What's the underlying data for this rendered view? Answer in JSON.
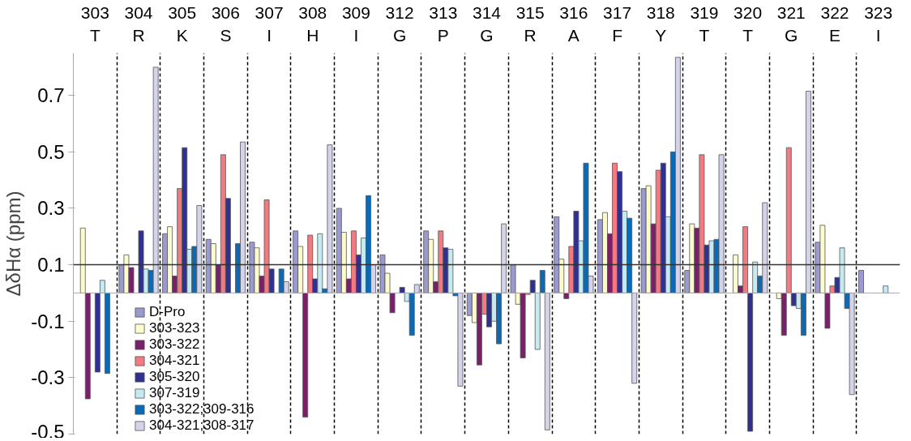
{
  "chart_data": {
    "type": "bar",
    "ylabel": "ΔδHα (ppm)",
    "categories": [
      "303\nT",
      "304\nR",
      "305\nK",
      "306\nS",
      "307\nI",
      "308\nH",
      "309\nI",
      "312\nG",
      "313\nP",
      "314\nG",
      "315\nR",
      "316\nA",
      "317\nF",
      "318\nY",
      "319\nT",
      "320\nT",
      "321\nG",
      "322\nE",
      "323\nI"
    ],
    "series": [
      {
        "name": "D-Pro",
        "color": "#9a9ad0",
        "values": [
          null,
          0.1,
          0.21,
          0.19,
          0.18,
          0.22,
          0.3,
          0.135,
          0.22,
          -0.08,
          0.1,
          0.27,
          0.26,
          0.37,
          0.08,
          null,
          null,
          0.18,
          0.08
        ]
      },
      {
        "name": "303-323",
        "color": "#fdfbcc",
        "values": [
          0.23,
          0.135,
          0.235,
          0.175,
          0.16,
          0.165,
          0.215,
          0.07,
          0.19,
          -0.105,
          -0.04,
          0.12,
          0.285,
          0.38,
          0.245,
          0.135,
          -0.02,
          0.24,
          null
        ]
      },
      {
        "name": "303-322",
        "color": "#7a1f6a",
        "values": [
          -0.375,
          0.09,
          0.06,
          0.1,
          0.06,
          -0.44,
          0.05,
          -0.07,
          0.04,
          -0.255,
          -0.23,
          -0.02,
          0.21,
          0.245,
          0.23,
          0.025,
          -0.15,
          -0.125,
          null
        ]
      },
      {
        "name": "304-321",
        "color": "#f27a80",
        "values": [
          null,
          null,
          0.37,
          0.49,
          0.33,
          0.205,
          0.22,
          null,
          0.22,
          -0.075,
          -0.005,
          0.165,
          0.46,
          0.435,
          0.49,
          0.235,
          0.515,
          0.025,
          null
        ]
      },
      {
        "name": "305-320",
        "color": "#2e3192",
        "values": [
          -0.28,
          0.22,
          0.515,
          0.335,
          0.085,
          0.05,
          0.135,
          0.02,
          0.16,
          -0.12,
          0.045,
          0.29,
          0.43,
          0.46,
          0.17,
          -0.49,
          -0.045,
          0.055,
          null
        ]
      },
      {
        "name": "307-319",
        "color": "#c5eaf2",
        "values": [
          0.045,
          0.085,
          0.155,
          null,
          null,
          0.21,
          0.195,
          -0.03,
          0.155,
          -0.1,
          -0.2,
          0.185,
          0.29,
          0.27,
          0.185,
          0.11,
          -0.055,
          0.16,
          0.025
        ]
      },
      {
        "name": "303-322;309-316",
        "color": "#0a6ab5",
        "values": [
          -0.285,
          0.08,
          0.165,
          0.175,
          0.085,
          0.015,
          0.345,
          -0.15,
          -0.01,
          -0.18,
          0.08,
          0.46,
          0.265,
          0.5,
          0.19,
          0.06,
          -0.15,
          -0.055,
          null
        ]
      },
      {
        "name": "304-321;308-317",
        "color": "#d3d3ec",
        "values": [
          null,
          0.8,
          0.31,
          0.535,
          0.04,
          0.525,
          0.1,
          0.03,
          -0.33,
          0.245,
          -0.485,
          0.06,
          -0.32,
          0.835,
          0.49,
          0.32,
          0.715,
          -0.36,
          null
        ]
      }
    ],
    "ylim": [
      -0.5,
      0.85
    ],
    "yticks": [
      -0.5,
      -0.3,
      -0.1,
      0.1,
      0.3,
      0.5,
      0.7
    ],
    "ref_lines": [
      {
        "axis": "y",
        "value": 0.1,
        "color": "#333333",
        "line_style": "solid"
      }
    ],
    "grid": "x",
    "legend": "bottom left"
  }
}
